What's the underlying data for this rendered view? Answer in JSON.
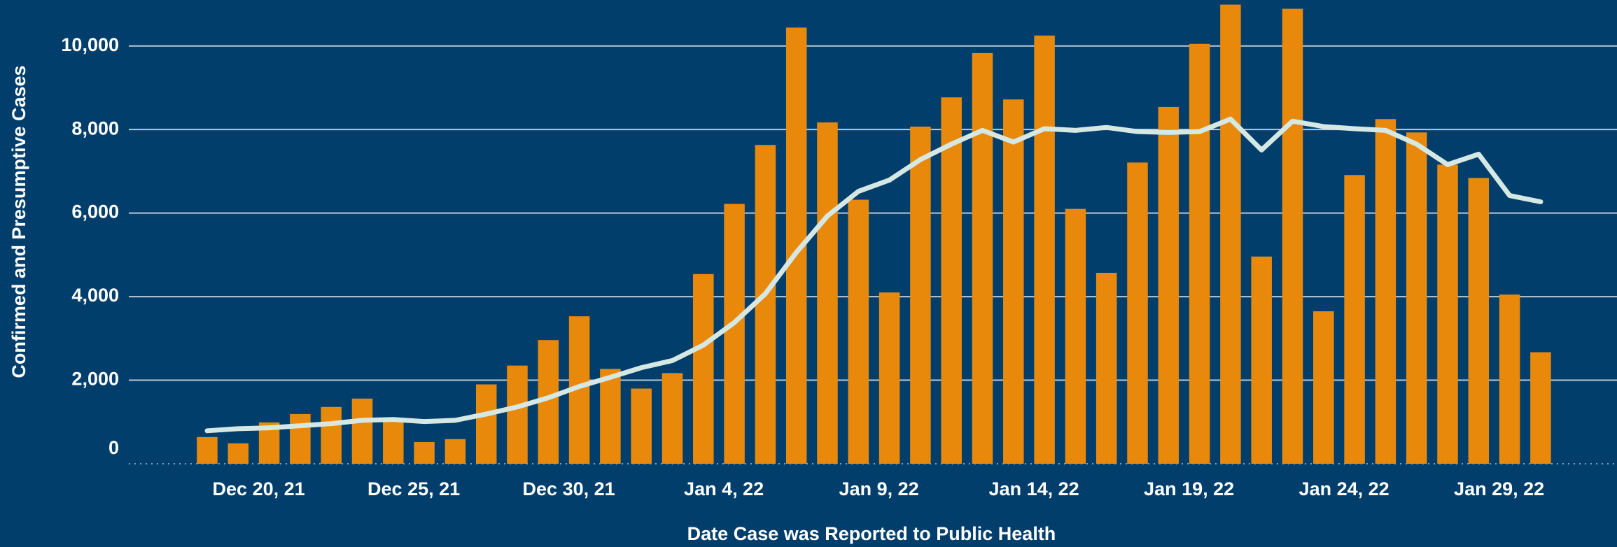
{
  "chart_data": {
    "type": "bar",
    "y_label": "Confirmed and Presumptive Cases",
    "x_label": "Date Case was Reported to Public Health",
    "categories": [
      null,
      null,
      "Dec 20, 21",
      null,
      null,
      null,
      null,
      "Dec 25, 21",
      null,
      null,
      null,
      null,
      "Dec 30, 21",
      null,
      null,
      null,
      null,
      "Jan 4, 22",
      null,
      null,
      null,
      null,
      "Jan 9, 22",
      null,
      null,
      null,
      null,
      "Jan 14, 22",
      null,
      null,
      null,
      null,
      "Jan 19, 22",
      null,
      null,
      null,
      null,
      "Jan 24, 22",
      null,
      null,
      null,
      null,
      "Jan 29, 22",
      null
    ],
    "series": [
      {
        "type": "bar",
        "color": "#e8890c",
        "values": [
          640,
          490,
          990,
          1190,
          1360,
          1560,
          1040,
          520,
          590,
          1900,
          2350,
          2960,
          3530,
          2270,
          1800,
          2170,
          4540,
          6220,
          7630,
          10440,
          8170,
          6320,
          4100,
          8070,
          8770,
          9830,
          8720,
          10250,
          6100,
          4570,
          7210,
          8540,
          10050,
          10990,
          4960,
          10890,
          3650,
          6910,
          8250,
          7930,
          7160,
          6840,
          4050,
          2670
        ]
      },
      {
        "type": "line",
        "color": "#d6e8e4",
        "values": [
          790,
          840,
          860,
          910,
          960,
          1040,
          1060,
          1010,
          1040,
          1190,
          1360,
          1580,
          1850,
          2070,
          2300,
          2470,
          2840,
          3380,
          4070,
          5060,
          5930,
          6520,
          6790,
          7280,
          7650,
          7980,
          7700,
          8020,
          7980,
          8050,
          7950,
          7930,
          7950,
          8250,
          7510,
          8200,
          8070,
          8020,
          7980,
          7650,
          7160,
          7410,
          6420,
          6270
        ]
      }
    ],
    "ylim": [
      0,
      11100
    ],
    "yticks": [
      0,
      {
        "value": 2000,
        "label": "2,000"
      },
      {
        "value": 4000,
        "label": "4,000"
      },
      {
        "value": 6000,
        "label": "6,000"
      },
      {
        "value": 8000,
        "label": "8,000"
      },
      {
        "value": 10000,
        "label": "10,000"
      }
    ],
    "grid": true,
    "background": "#023e6c"
  }
}
